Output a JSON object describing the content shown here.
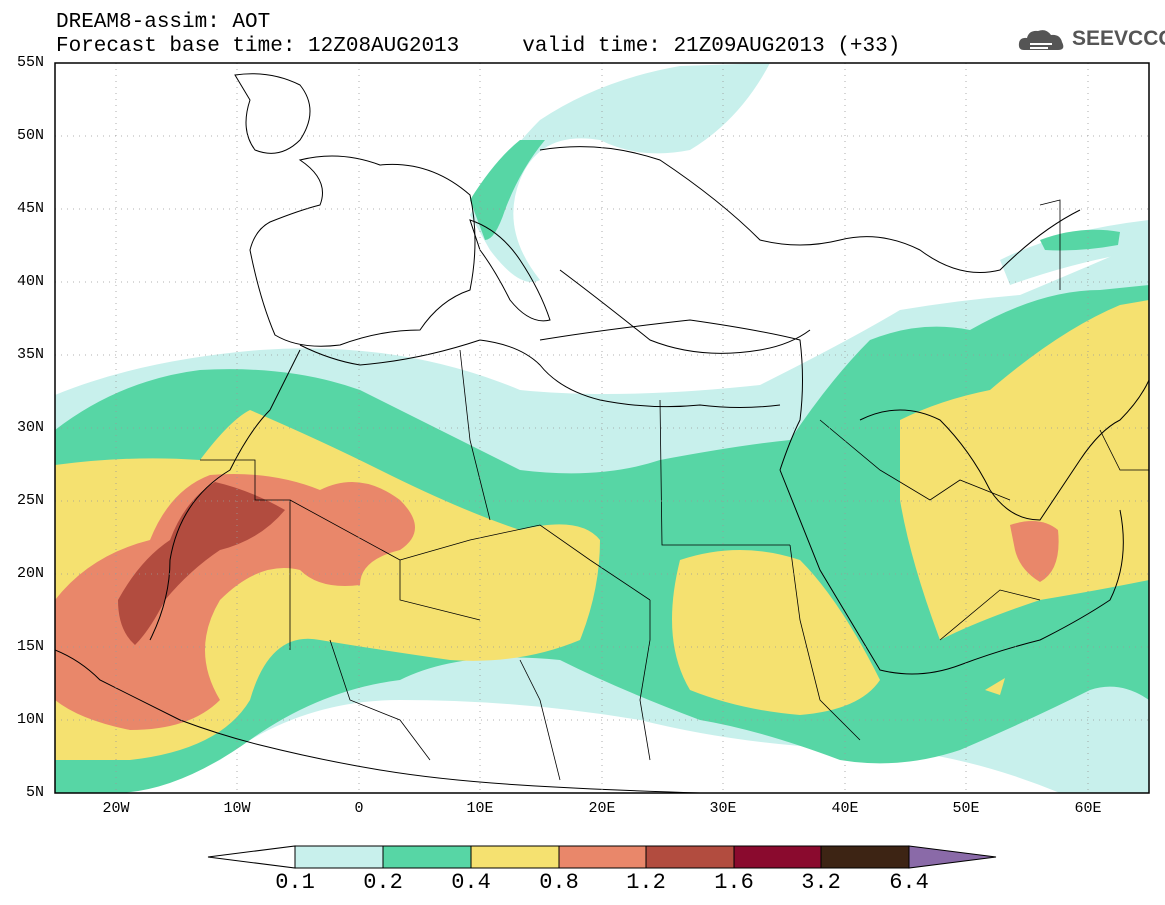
{
  "header": {
    "line1": "DREAM8-assim: AOT",
    "line2": "Forecast base time: 12Z08AUG2013     valid time: 21Z09AUG2013 (+33)",
    "logo_text": "SEEVCCC",
    "logo_icon": "cloud-logo-icon"
  },
  "map": {
    "lon_range": [
      -25,
      65
    ],
    "lat_range": [
      5,
      55
    ],
    "lat_labels": [
      "55N",
      "50N",
      "45N",
      "40N",
      "35N",
      "30N",
      "25N",
      "20N",
      "15N",
      "10N",
      "5N"
    ],
    "lon_labels": [
      "20W",
      "10W",
      "0",
      "10E",
      "20E",
      "30E",
      "40E",
      "50E",
      "60E"
    ],
    "grid": "dotted"
  },
  "colorbar": {
    "labels": [
      "0.1",
      "0.2",
      "0.4",
      "0.8",
      "1.2",
      "1.6",
      "3.2",
      "6.4"
    ],
    "colors": [
      "#ffffff",
      "#c8f0ec",
      "#57d6a5",
      "#f5e170",
      "#e9876a",
      "#b24c3f",
      "#8a0a2e",
      "#3d2414",
      "#8a6aa8"
    ]
  }
}
